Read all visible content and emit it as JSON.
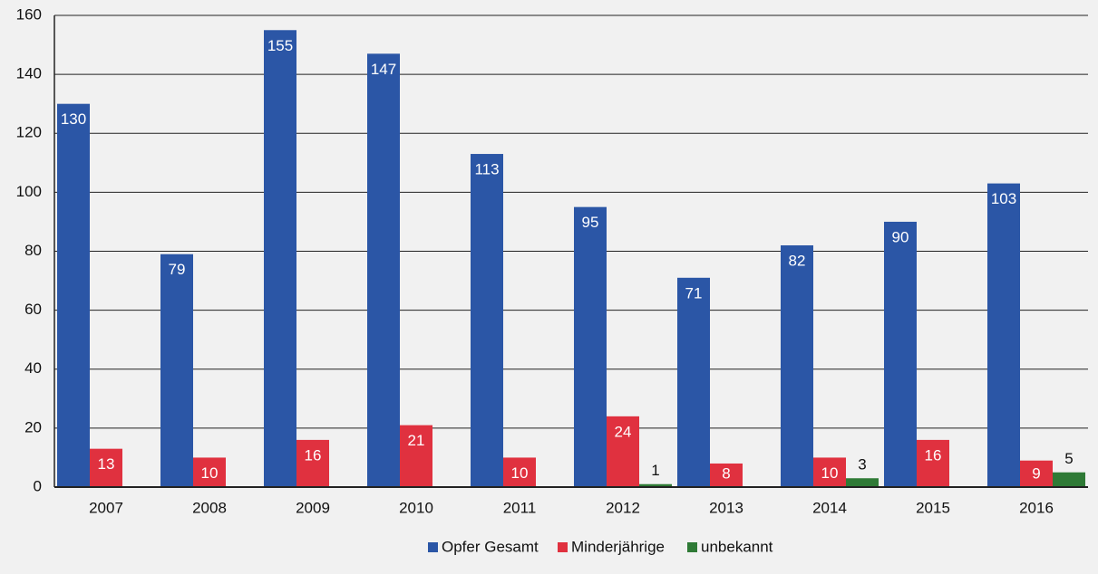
{
  "chart_data": {
    "type": "bar",
    "categories": [
      "2007",
      "2008",
      "2009",
      "2010",
      "2011",
      "2012",
      "2013",
      "2014",
      "2015",
      "2016"
    ],
    "series": [
      {
        "name": "Opfer Gesamt",
        "color": "#2b56a6",
        "values": [
          130,
          79,
          155,
          147,
          113,
          95,
          71,
          82,
          90,
          103
        ]
      },
      {
        "name": "Minderjährige",
        "color": "#e0313f",
        "values": [
          13,
          10,
          16,
          21,
          10,
          24,
          8,
          10,
          16,
          9
        ]
      },
      {
        "name": "unbekannt",
        "color": "#2f7a36",
        "values": [
          null,
          null,
          null,
          null,
          null,
          1,
          null,
          3,
          null,
          5
        ]
      }
    ],
    "ylim": [
      0,
      160
    ],
    "yticks": [
      0,
      20,
      40,
      60,
      80,
      100,
      120,
      140,
      160
    ],
    "grid": true,
    "legend": "bottom"
  }
}
